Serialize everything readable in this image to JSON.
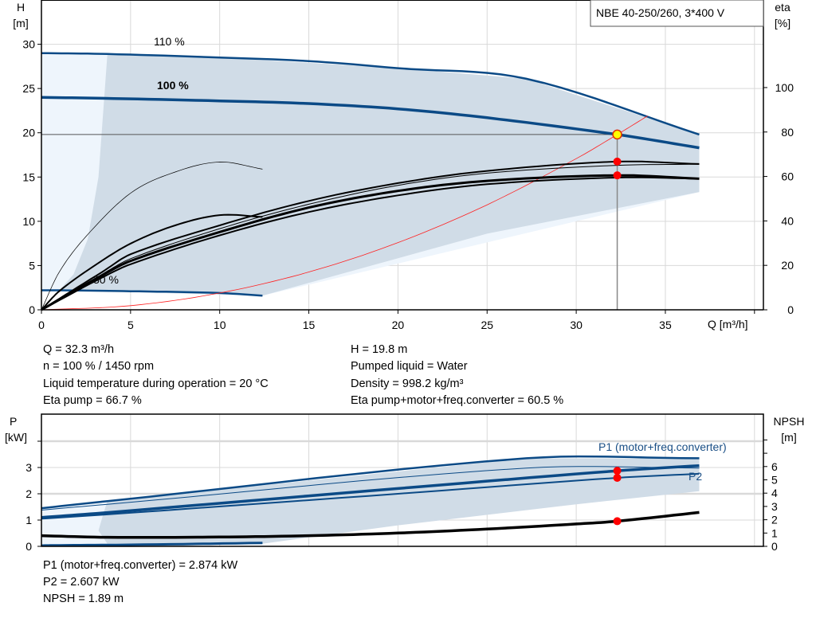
{
  "chart_data": [
    {
      "type": "line",
      "title": "NBE 40-250/260, 3*400 V",
      "xlabel": "Q [m³/h]",
      "ylabel": "H [m]",
      "ylabel_top": "H",
      "ylabel_unit": "[m]",
      "y2label_top": "eta",
      "y2label_unit": "[%]",
      "xlim": [
        0,
        40.5
      ],
      "ylim": [
        0,
        35
      ],
      "y2lim": [
        0,
        139.4
      ],
      "xticks": [
        "0",
        "5",
        "10",
        "15",
        "20",
        "25",
        "30",
        "35",
        "40"
      ],
      "xtick_labels": [
        "0",
        "5",
        "10",
        "15",
        "20",
        "25",
        "30",
        "35"
      ],
      "yticks": [
        "0",
        "5",
        "10",
        "15",
        "20",
        "25",
        "30"
      ],
      "y2ticks": [
        "0",
        "20",
        "40",
        "60",
        "80",
        "100"
      ],
      "grid": true,
      "curve_labels": {
        "s110": "110 %",
        "s100": "100 %",
        "s30": "30 %"
      },
      "region_outer": [
        [
          0,
          29
        ],
        [
          3.7,
          28.9
        ],
        [
          36.9,
          19.8
        ],
        [
          36.9,
          13.3
        ],
        [
          12.4,
          1.6
        ],
        [
          1,
          2.2
        ],
        [
          0,
          2.2
        ]
      ],
      "region_inner": [
        [
          3.7,
          28.9
        ],
        [
          10,
          28.5
        ],
        [
          20,
          27.3
        ],
        [
          27.2,
          26.1
        ],
        [
          36.9,
          19.8
        ],
        [
          36.9,
          13.3
        ],
        [
          25,
          8.6
        ],
        [
          12.4,
          1.6
        ],
        [
          1,
          2.2
        ],
        [
          1.8,
          4
        ],
        [
          2.6,
          8
        ],
        [
          3.2,
          15
        ],
        [
          3.7,
          28.9
        ]
      ],
      "series": [
        {
          "id": "h110",
          "axis": "H",
          "color": "#0b4a86",
          "width": 2.5,
          "x": [
            0,
            3.7,
            10,
            15,
            20,
            27.2,
            36.9
          ],
          "y": [
            29,
            28.9,
            28.5,
            28.1,
            27.3,
            26.1,
            19.8
          ]
        },
        {
          "id": "h100",
          "axis": "H",
          "color": "#0b4a86",
          "width": 3.5,
          "x": [
            0,
            3.4,
            10,
            15,
            20,
            25,
            32.3,
            36.9
          ],
          "y": [
            24,
            23.9,
            23.6,
            23.3,
            22.7,
            21.7,
            19.8,
            18.3
          ]
        },
        {
          "id": "h30",
          "axis": "H",
          "color": "#0b4a86",
          "width": 2.5,
          "x": [
            0,
            1,
            5,
            10,
            12.4
          ],
          "y": [
            2.2,
            2.2,
            2.1,
            1.9,
            1.6
          ]
        },
        {
          "id": "system-curve",
          "axis": "H",
          "color": "#ff2020",
          "width": 0.8,
          "x": [
            0,
            5,
            10,
            15,
            20,
            25,
            30,
            32.3,
            34
          ],
          "y": [
            0,
            0.47,
            1.9,
            4.27,
            7.59,
            11.86,
            17.08,
            19.8,
            21.9
          ]
        },
        {
          "id": "eta-pump-100",
          "axis": "eta",
          "color": "#000",
          "width": 2,
          "x": [
            0,
            3.4,
            5,
            10,
            15,
            20,
            25,
            32.3,
            36.9
          ],
          "y": [
            0,
            17,
            25,
            38,
            49,
            57,
            62.5,
            66.7,
            65.6
          ]
        },
        {
          "id": "eta-pump-110",
          "axis": "eta",
          "color": "#000",
          "width": 1,
          "x": [
            0,
            3.4,
            5,
            10,
            15,
            20,
            25,
            32.3,
            36.9
          ],
          "y": [
            0,
            16,
            23,
            36.5,
            47.5,
            56,
            61.5,
            65,
            65.5
          ]
        },
        {
          "id": "eta-total-100",
          "axis": "eta",
          "color": "#000",
          "width": 3,
          "x": [
            0,
            3.4,
            5,
            10,
            15,
            20,
            25,
            32.3,
            36.9
          ],
          "y": [
            0,
            15.5,
            22,
            35,
            46,
            53.5,
            58,
            60.5,
            59
          ]
        },
        {
          "id": "eta-total-110",
          "axis": "eta",
          "color": "#000",
          "width": 2,
          "x": [
            0,
            3.4,
            5,
            10,
            15,
            20,
            25,
            32.3,
            36.9
          ],
          "y": [
            0,
            14.5,
            20.5,
            33.5,
            44,
            51.5,
            56.5,
            59.5,
            59
          ]
        },
        {
          "id": "eta-pump-30",
          "axis": "eta",
          "color": "#000",
          "width": 2,
          "x": [
            0,
            1,
            3,
            5,
            7.5,
            10,
            12.4
          ],
          "y": [
            0,
            8.4,
            20,
            29.8,
            38,
            42.6,
            41.8
          ]
        },
        {
          "id": "eta-thin-30",
          "axis": "eta",
          "color": "#000",
          "width": 0.7,
          "x": [
            0,
            1,
            2.5,
            5,
            7.5,
            10,
            12.4
          ],
          "y": [
            0,
            17,
            33,
            52.5,
            62,
            66.5,
            63.3
          ]
        }
      ],
      "operating_point": {
        "Q": 32.3,
        "H": 19.8,
        "eta_pump": 66.7,
        "eta_total": 60.5
      },
      "marker_colors": {
        "point": "#ff0000",
        "duty_fill": "#ffff00",
        "duty_stroke": "#e03000"
      }
    },
    {
      "type": "line",
      "ylabel_top": "P",
      "ylabel_unit": "[kW]",
      "y2label_top": "NPSH",
      "y2label_unit": "[m]",
      "xlim": [
        0,
        40.5
      ],
      "ylim": [
        0,
        5.03
      ],
      "y2lim": [
        0,
        9.94
      ],
      "yticks": [
        "0",
        "1",
        "2",
        "3"
      ],
      "y2ticks": [
        "0",
        "1",
        "2",
        "3",
        "4",
        "5",
        "6"
      ],
      "grid": true,
      "curve_labels": {
        "p1": "P1 (motor+freq.converter)",
        "p2": "P2"
      },
      "region_outer": [
        [
          0,
          1.45
        ],
        [
          3.7,
          1.72
        ],
        [
          3.7,
          0.1
        ],
        [
          0,
          0.05
        ]
      ],
      "region_inner": [
        [
          3.7,
          1.72
        ],
        [
          27.2,
          3.35
        ],
        [
          36.9,
          3.35
        ],
        [
          36.9,
          2.1
        ],
        [
          30,
          1.6
        ],
        [
          20,
          0.8
        ],
        [
          12.4,
          0.1
        ],
        [
          3.7,
          0.1
        ],
        [
          3.2,
          0.6
        ],
        [
          3.5,
          1.3
        ]
      ],
      "series": [
        {
          "id": "p1-110",
          "axis": "P",
          "color": "#0b4a86",
          "width": 2.5,
          "x": [
            0,
            3.7,
            27.2,
            36.9
          ],
          "y": [
            1.45,
            1.72,
            3.35,
            3.35
          ]
        },
        {
          "id": "p2-110",
          "axis": "P",
          "color": "#0b4a86",
          "width": 1,
          "x": [
            0,
            3.7,
            27.2,
            36.9
          ],
          "y": [
            1.38,
            1.6,
            2.98,
            2.98
          ]
        },
        {
          "id": "p1-100",
          "axis": "P",
          "color": "#0b4a86",
          "width": 3.5,
          "x": [
            0,
            3.4,
            20,
            32.3,
            36.9
          ],
          "y": [
            1.1,
            1.27,
            2.2,
            2.874,
            3.07
          ]
        },
        {
          "id": "p2-100",
          "axis": "P",
          "color": "#0b4a86",
          "width": 2,
          "x": [
            0,
            3.4,
            20,
            32.3,
            36.9
          ],
          "y": [
            1.05,
            1.2,
            2.0,
            2.607,
            2.76
          ]
        },
        {
          "id": "npsh-100",
          "axis": "NPSH",
          "color": "#000",
          "width": 3.5,
          "x": [
            0,
            3.7,
            10,
            15,
            20,
            25,
            30,
            32.3,
            36.9
          ],
          "y": [
            0.8,
            0.68,
            0.7,
            0.8,
            1.0,
            1.3,
            1.68,
            1.89,
            2.55
          ]
        },
        {
          "id": "p-30",
          "axis": "P",
          "color": "#0b4a86",
          "width": 3,
          "x": [
            0,
            1,
            5,
            12.4
          ],
          "y": [
            0.03,
            0.04,
            0.06,
            0.13
          ]
        }
      ],
      "operating_point": {
        "Q": 32.3,
        "P1": 2.874,
        "P2": 2.607,
        "NPSH": 1.89
      }
    }
  ],
  "info": {
    "left": [
      "Q = 32.3 m³/h",
      "n = 100 % / 1450 rpm",
      "Liquid temperature during operation = 20 °C",
      "Eta pump = 66.7 %"
    ],
    "right": [
      "H = 19.8 m",
      "Pumped liquid = Water",
      "Density = 998.2 kg/m³",
      "Eta pump+motor+freq.converter = 60.5 %"
    ],
    "bottom": [
      "P1 (motor+freq.converter) = 2.874 kW",
      "P2 = 2.607 kW",
      "NPSH = 1.89 m"
    ]
  },
  "colors": {
    "region_inner": "#d0dce7",
    "region_outer": "#eef5fc",
    "curve": "#0b4a86",
    "grid": "#d9d9d9"
  }
}
